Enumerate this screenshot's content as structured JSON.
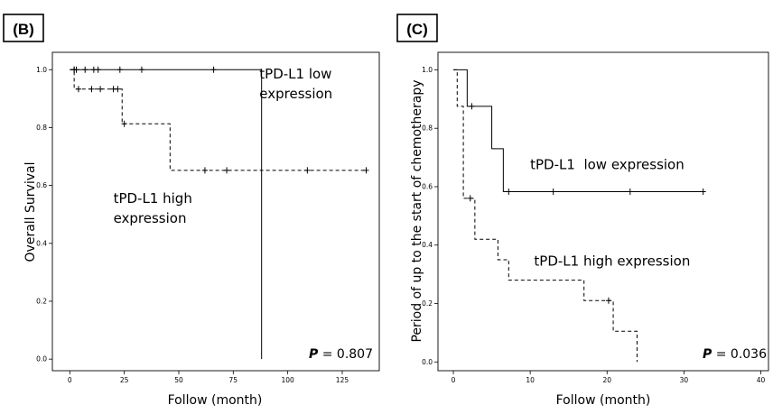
{
  "chart_data": [
    {
      "type": "line",
      "panel_label": "(B)",
      "xlabel": "Follow (month)",
      "ylabel": "Overall Survival",
      "xlim": [
        -8,
        142
      ],
      "ylim": [
        -0.04,
        1.06
      ],
      "xticks": [
        0,
        25,
        50,
        75,
        100,
        125
      ],
      "yticks": [
        0.0,
        0.2,
        0.4,
        0.6,
        0.8,
        1.0
      ],
      "xtick_labels": [
        "0",
        "25",
        "50",
        "75",
        "100",
        "125"
      ],
      "ytick_labels": [
        "0.0",
        "0.2",
        "0.4",
        "0.6",
        "0.8",
        "1.0"
      ],
      "p_label": "P",
      "p_value": " = 0.807",
      "annotations": [
        {
          "lines": [
            "tPD-L1 low",
            "expression"
          ],
          "x": 87,
          "y": 0.97
        },
        {
          "lines": [
            "tPD-L1 high",
            "expression"
          ],
          "x": 20,
          "y": 0.54
        }
      ],
      "series": [
        {
          "style": "solid",
          "steps": [
            [
              0,
              1.0
            ],
            [
              88,
              1.0
            ],
            [
              88,
              0.0
            ]
          ],
          "censors": [
            [
              2,
              1.0
            ],
            [
              3,
              1.0
            ],
            [
              7,
              1.0
            ],
            [
              11,
              1.0
            ],
            [
              13,
              1.0
            ],
            [
              23,
              1.0
            ],
            [
              33,
              1.0
            ],
            [
              66,
              1.0
            ]
          ]
        },
        {
          "style": "dashed",
          "steps": [
            [
              0,
              1.0
            ],
            [
              2,
              1.0
            ],
            [
              2,
              0.933
            ],
            [
              24,
              0.933
            ],
            [
              24,
              0.813
            ],
            [
              46,
              0.813
            ],
            [
              46,
              0.652
            ],
            [
              136,
              0.652
            ]
          ],
          "censors": [
            [
              2,
              1.0
            ],
            [
              4,
              0.933
            ],
            [
              10,
              0.933
            ],
            [
              14,
              0.933
            ],
            [
              20,
              0.933
            ],
            [
              22,
              0.933
            ],
            [
              25,
              0.813
            ],
            [
              62,
              0.652
            ],
            [
              72,
              0.652
            ],
            [
              109,
              0.652
            ],
            [
              136,
              0.652
            ]
          ]
        }
      ]
    },
    {
      "type": "line",
      "panel_label": "(C)",
      "xlabel": "Follow (month)",
      "ylabel": "Period of up to the start of chemotherapy",
      "xlim": [
        -2,
        41
      ],
      "ylim": [
        -0.03,
        1.06
      ],
      "xticks": [
        0,
        10,
        20,
        30,
        40
      ],
      "yticks": [
        0.0,
        0.2,
        0.4,
        0.6,
        0.8,
        1.0
      ],
      "xtick_labels": [
        "0",
        "10",
        "20",
        "30",
        "40"
      ],
      "ytick_labels": [
        "0.0",
        "0.2",
        "0.4",
        "0.6",
        "0.8",
        "1.0"
      ],
      "p_label": "P",
      "p_value": " = 0.036",
      "annotations": [
        {
          "lines": [
            "tPD-L1  low expression"
          ],
          "x": 10,
          "y": 0.66
        },
        {
          "lines": [
            "tPD-L1 high expression"
          ],
          "x": 10.5,
          "y": 0.33
        }
      ],
      "series": [
        {
          "style": "solid",
          "steps": [
            [
              0,
              1.0
            ],
            [
              1.8,
              1.0
            ],
            [
              1.8,
              0.875
            ],
            [
              5,
              0.875
            ],
            [
              5,
              0.73
            ],
            [
              6.5,
              0.73
            ],
            [
              6.5,
              0.583
            ],
            [
              32.5,
              0.583
            ]
          ],
          "censors": [
            [
              2.4,
              0.875
            ],
            [
              7.2,
              0.583
            ],
            [
              13,
              0.583
            ],
            [
              23,
              0.583
            ],
            [
              32.5,
              0.583
            ]
          ]
        },
        {
          "style": "dashed",
          "steps": [
            [
              0,
              1.0
            ],
            [
              0.5,
              1.0
            ],
            [
              0.5,
              0.875
            ],
            [
              1.3,
              0.875
            ],
            [
              1.3,
              0.56
            ],
            [
              2.8,
              0.56
            ],
            [
              2.8,
              0.42
            ],
            [
              5.8,
              0.42
            ],
            [
              5.8,
              0.35
            ],
            [
              7.2,
              0.35
            ],
            [
              7.2,
              0.28
            ],
            [
              17,
              0.28
            ],
            [
              17,
              0.21
            ],
            [
              20.8,
              0.21
            ],
            [
              20.8,
              0.105
            ],
            [
              23.9,
              0.105
            ],
            [
              23.9,
              0.0
            ]
          ],
          "censors": [
            [
              2.2,
              0.56
            ],
            [
              20.2,
              0.21
            ]
          ]
        }
      ]
    }
  ]
}
